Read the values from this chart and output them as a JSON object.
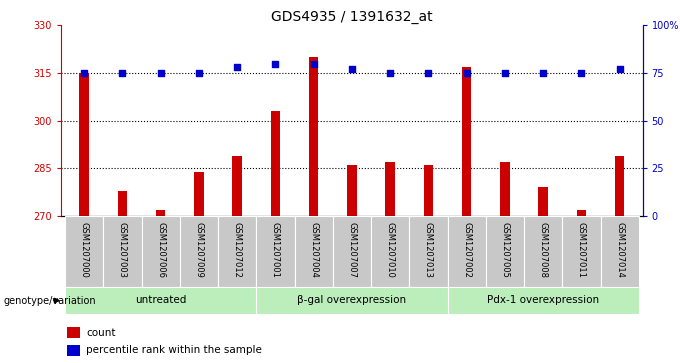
{
  "title": "GDS4935 / 1391632_at",
  "samples": [
    "GSM1207000",
    "GSM1207003",
    "GSM1207006",
    "GSM1207009",
    "GSM1207012",
    "GSM1207001",
    "GSM1207004",
    "GSM1207007",
    "GSM1207010",
    "GSM1207013",
    "GSM1207002",
    "GSM1207005",
    "GSM1207008",
    "GSM1207011",
    "GSM1207014"
  ],
  "counts": [
    315,
    278,
    272,
    284,
    289,
    303,
    320,
    286,
    287,
    286,
    317,
    287,
    279,
    272,
    289
  ],
  "percentiles": [
    75,
    75,
    75,
    75,
    78,
    80,
    80,
    77,
    75,
    75,
    75,
    75,
    75,
    75,
    77
  ],
  "groups": [
    {
      "label": "untreated",
      "start": 0,
      "end": 5
    },
    {
      "label": "β-gal overexpression",
      "start": 5,
      "end": 10
    },
    {
      "label": "Pdx-1 overexpression",
      "start": 10,
      "end": 15
    }
  ],
  "ylim_left": [
    270,
    330
  ],
  "ylim_right": [
    0,
    100
  ],
  "yticks_left": [
    270,
    285,
    300,
    315,
    330
  ],
  "yticks_right": [
    0,
    25,
    50,
    75,
    100
  ],
  "bar_color": "#cc0000",
  "dot_color": "#0000cc",
  "bg_color": "#c8c8c8",
  "group_color_light": "#bbeebb",
  "group_color_dark": "#66cc66",
  "grid_color": "#000000",
  "title_fontsize": 10,
  "tick_fontsize": 7,
  "label_fontsize": 7.5,
  "genotype_label": "genotype/variation",
  "bar_width": 0.25
}
